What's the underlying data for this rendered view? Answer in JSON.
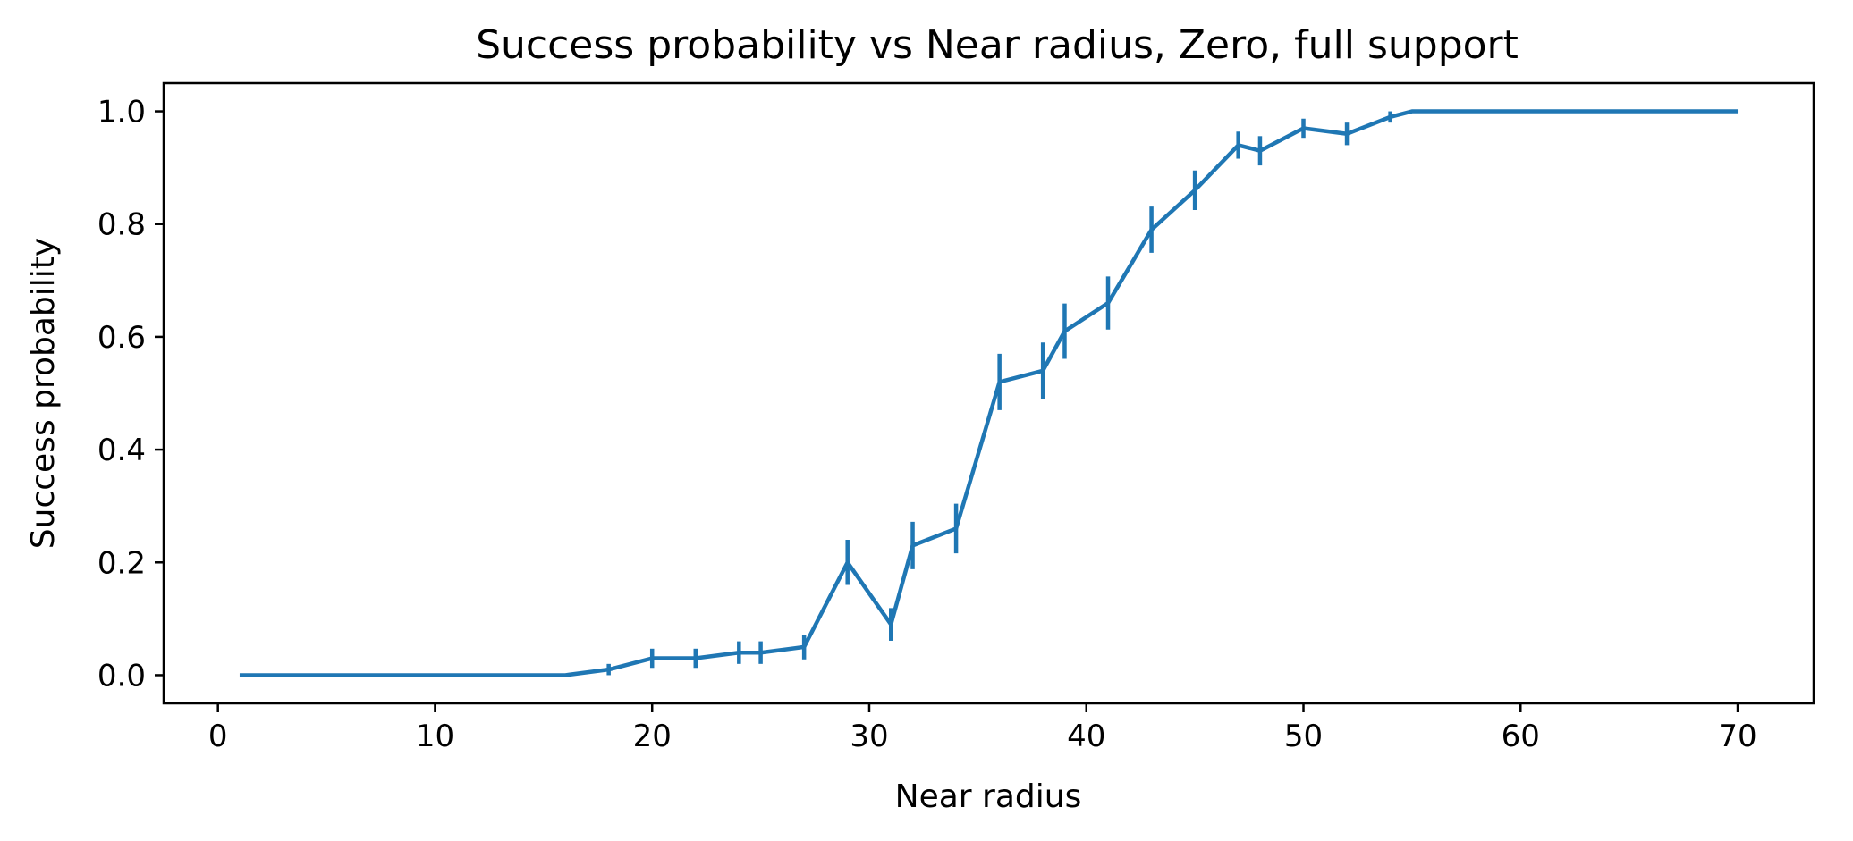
{
  "chart_data": {
    "type": "line",
    "title": "Success probability vs Near radius, Zero, full support",
    "xlabel": "Near radius",
    "ylabel": "Success probability",
    "xlim": [
      -2.5,
      73.5
    ],
    "ylim": [
      -0.05,
      1.05
    ],
    "xticks": [
      0,
      10,
      20,
      30,
      40,
      50,
      60,
      70
    ],
    "xtick_labels": [
      "0",
      "10",
      "20",
      "30",
      "40",
      "50",
      "60",
      "70"
    ],
    "yticks": [
      0.0,
      0.2,
      0.4,
      0.6,
      0.8,
      1.0
    ],
    "ytick_labels": [
      "0.0",
      "0.2",
      "0.4",
      "0.6",
      "0.8",
      "1.0"
    ],
    "grid": false,
    "color": "#1f77b4",
    "series": [
      {
        "x": [
          1,
          16,
          18,
          20,
          22,
          24,
          25,
          27,
          29,
          31,
          32,
          34,
          36,
          38,
          39,
          41,
          43,
          45,
          47,
          48,
          50,
          52,
          54,
          55,
          70
        ],
        "y": [
          0.0,
          0.0,
          0.01,
          0.03,
          0.03,
          0.04,
          0.04,
          0.05,
          0.2,
          0.09,
          0.23,
          0.26,
          0.52,
          0.54,
          0.61,
          0.66,
          0.79,
          0.86,
          0.94,
          0.93,
          0.97,
          0.96,
          0.99,
          1.0,
          1.0
        ],
        "yerr": [
          0.0,
          0.0,
          0.01,
          0.017,
          0.017,
          0.02,
          0.02,
          0.022,
          0.04,
          0.029,
          0.042,
          0.044,
          0.05,
          0.05,
          0.049,
          0.047,
          0.041,
          0.035,
          0.024,
          0.026,
          0.017,
          0.02,
          0.01,
          0.0,
          0.0
        ]
      }
    ]
  }
}
